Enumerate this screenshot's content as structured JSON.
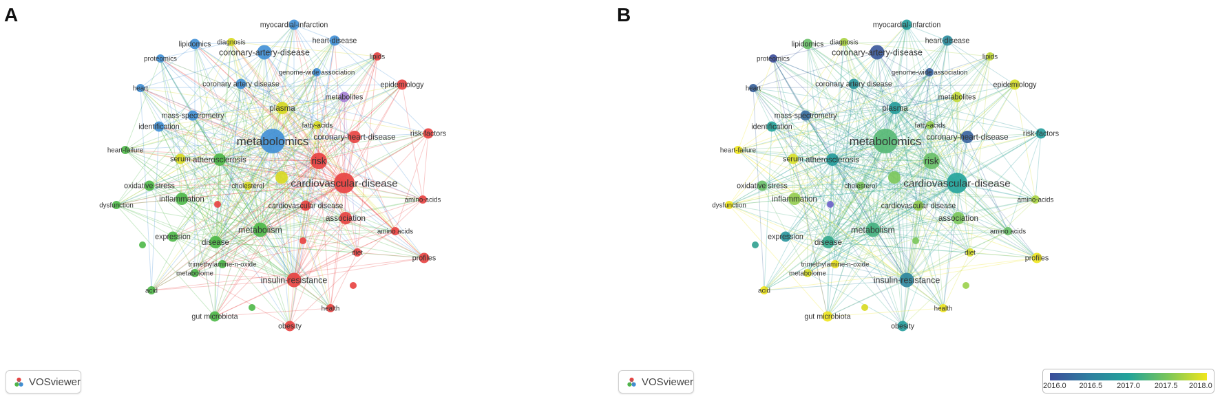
{
  "panels": [
    {
      "letter": "A",
      "mode": "cluster"
    },
    {
      "letter": "B",
      "mode": "overlay"
    }
  ],
  "badge_label": "VOSviewer",
  "badge_icon": "vosviewer-logo-icon",
  "cluster_colors": {
    "red": "#e8403f",
    "green": "#4cb847",
    "blue": "#3f8fd6",
    "yellow": "#d7d91f",
    "purple": "#a57fd6"
  },
  "overlay_legend": {
    "ticks": [
      "2016.0",
      "2016.5",
      "2017.0",
      "2017.5",
      "2018.0"
    ],
    "min": 2016.0,
    "max": 2018.0,
    "colors": [
      "#3b4d9a",
      "#2f7fa0",
      "#22a39a",
      "#7ac65a",
      "#f0e61c"
    ]
  },
  "nodes": [
    {
      "label": "metabolomics",
      "cluster": "blue",
      "year": 2017.3,
      "weight": 10
    },
    {
      "label": "risk",
      "cluster": "red",
      "year": 2017.4,
      "weight": 6
    },
    {
      "label": "cardiovascular-disease",
      "cluster": "red",
      "year": 2017.0,
      "weight": 8
    },
    {
      "label": "plasma",
      "cluster": "yellow",
      "year": 2016.9,
      "weight": 4
    },
    {
      "label": "atherosclerosis",
      "cluster": "green",
      "year": 2016.9,
      "weight": 4
    },
    {
      "label": "serum",
      "cluster": "yellow",
      "year": 2017.9,
      "weight": 3
    },
    {
      "label": "cholesterol",
      "cluster": "yellow",
      "year": 2017.5,
      "weight": 2
    },
    {
      "label": "inflammation",
      "cluster": "green",
      "year": 2017.6,
      "weight": 4
    },
    {
      "label": "oxidative stress",
      "cluster": "green",
      "year": 2017.4,
      "weight": 3
    },
    {
      "label": "metabolism",
      "cluster": "green",
      "year": 2017.2,
      "weight": 5
    },
    {
      "label": "disease",
      "cluster": "green",
      "year": 2017.1,
      "weight": 4
    },
    {
      "label": "expression",
      "cluster": "green",
      "year": 2016.8,
      "weight": 3
    },
    {
      "label": "dysfunction",
      "cluster": "green",
      "year": 2018.0,
      "weight": 2
    },
    {
      "label": "heart-failure",
      "cluster": "green",
      "year": 2018.0,
      "weight": 2
    },
    {
      "label": "identification",
      "cluster": "blue",
      "year": 2017.0,
      "weight": 3
    },
    {
      "label": "heart",
      "cluster": "blue",
      "year": 2016.2,
      "weight": 2
    },
    {
      "label": "proteomics",
      "cluster": "blue",
      "year": 2016.0,
      "weight": 2
    },
    {
      "label": "lipidomics",
      "cluster": "blue",
      "year": 2017.4,
      "weight": 3
    },
    {
      "label": "diagnosis",
      "cluster": "yellow",
      "year": 2017.7,
      "weight": 2
    },
    {
      "label": "myocardial-infarction",
      "cluster": "blue",
      "year": 2016.9,
      "weight": 3
    },
    {
      "label": "heart-disease",
      "cluster": "blue",
      "year": 2016.7,
      "weight": 3
    },
    {
      "label": "coronary-artery-disease",
      "cluster": "blue",
      "year": 2016.1,
      "weight": 5
    },
    {
      "label": "genome-wide association",
      "cluster": "blue",
      "year": 2016.2,
      "weight": 2
    },
    {
      "label": "coronary artery disease",
      "cluster": "blue",
      "year": 2016.8,
      "weight": 3
    },
    {
      "label": "mass-spectrometry",
      "cluster": "blue",
      "year": 2016.3,
      "weight": 3
    },
    {
      "label": "metabolites",
      "cluster": "purple",
      "year": 2017.8,
      "weight": 3
    },
    {
      "label": "fatty-acids",
      "cluster": "yellow",
      "year": 2017.6,
      "weight": 2
    },
    {
      "label": "lipids",
      "cluster": "red",
      "year": 2017.8,
      "weight": 2
    },
    {
      "label": "epidemiology",
      "cluster": "red",
      "year": 2017.9,
      "weight": 3
    },
    {
      "label": "coronary-heart-disease",
      "cluster": "red",
      "year": 2016.2,
      "weight": 4
    },
    {
      "label": "risk-factors",
      "cluster": "red",
      "year": 2016.9,
      "weight": 3
    },
    {
      "label": "amino-acids",
      "cluster": "red",
      "year": 2017.7,
      "weight": 2
    },
    {
      "label": "association",
      "cluster": "red",
      "year": 2017.5,
      "weight": 4
    },
    {
      "label": "cardiovascular disease",
      "cluster": "red",
      "year": 2017.6,
      "weight": 3
    },
    {
      "label": "amino acids",
      "cluster": "red",
      "year": 2017.4,
      "weight": 2
    },
    {
      "label": "diet",
      "cluster": "red",
      "year": 2017.9,
      "weight": 2
    },
    {
      "label": "profiles",
      "cluster": "red",
      "year": 2018.0,
      "weight": 3
    },
    {
      "label": "insulin-resistance",
      "cluster": "red",
      "year": 2016.6,
      "weight": 5
    },
    {
      "label": "health",
      "cluster": "red",
      "year": 2018.0,
      "weight": 2
    },
    {
      "label": "obesity",
      "cluster": "red",
      "year": 2016.9,
      "weight": 3
    },
    {
      "label": "gut microbiota",
      "cluster": "green",
      "year": 2018.0,
      "weight": 3
    },
    {
      "label": "trimethylamine-n-oxide",
      "cluster": "green",
      "year": 2018.0,
      "weight": 2
    },
    {
      "label": "metabolome",
      "cluster": "green",
      "year": 2017.9,
      "weight": 2
    },
    {
      "label": "acid",
      "cluster": "green",
      "year": 2018.0,
      "weight": 2
    }
  ]
}
